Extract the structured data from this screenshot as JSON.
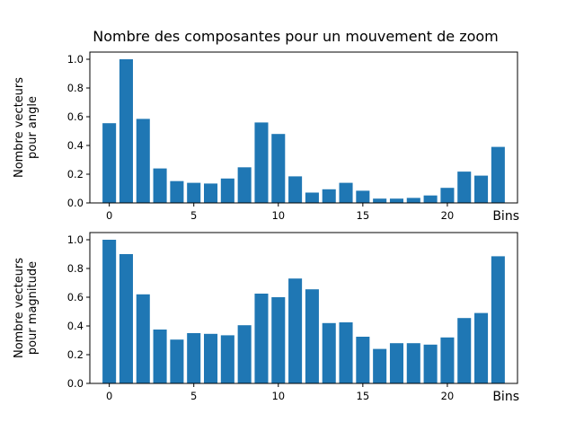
{
  "title": "Nombre des composantes pour un mouvement de zoom",
  "colors": {
    "bar": "#1f77b4"
  },
  "chart_data": [
    {
      "type": "bar",
      "ylabel": [
        "Nombre vecteurs",
        "pour angle"
      ],
      "xlabel": "Bins",
      "x": [
        0,
        1,
        2,
        3,
        4,
        5,
        6,
        7,
        8,
        9,
        10,
        11,
        12,
        13,
        14,
        15,
        16,
        17,
        18,
        19,
        20,
        21,
        22,
        23
      ],
      "values": [
        0.555,
        1.0,
        0.585,
        0.24,
        0.152,
        0.14,
        0.135,
        0.17,
        0.248,
        0.56,
        0.48,
        0.185,
        0.072,
        0.095,
        0.14,
        0.085,
        0.03,
        0.03,
        0.035,
        0.052,
        0.105,
        0.218,
        0.19,
        0.39
      ],
      "ylim": [
        0,
        1.05
      ],
      "xlim": [
        -1.15,
        24.15
      ],
      "xticks": [
        0,
        5,
        10,
        15,
        20
      ],
      "yticks": [
        0.0,
        0.2,
        0.4,
        0.6,
        0.8,
        1.0
      ],
      "xtick_labels": [
        "0",
        "5",
        "10",
        "15",
        "20"
      ],
      "ytick_labels": [
        "0.0",
        "0.2",
        "0.4",
        "0.6",
        "0.8",
        "1.0"
      ]
    },
    {
      "type": "bar",
      "ylabel": [
        "Nombre vecteurs",
        "pour magnitude"
      ],
      "xlabel": "Bins",
      "x": [
        0,
        1,
        2,
        3,
        4,
        5,
        6,
        7,
        8,
        9,
        10,
        11,
        12,
        13,
        14,
        15,
        16,
        17,
        18,
        19,
        20,
        21,
        22,
        23
      ],
      "values": [
        1.0,
        0.9,
        0.62,
        0.375,
        0.305,
        0.35,
        0.345,
        0.335,
        0.405,
        0.625,
        0.6,
        0.73,
        0.655,
        0.42,
        0.425,
        0.325,
        0.24,
        0.28,
        0.28,
        0.27,
        0.32,
        0.455,
        0.49,
        0.885
      ],
      "ylim": [
        0,
        1.05
      ],
      "xlim": [
        -1.15,
        24.15
      ],
      "xticks": [
        0,
        5,
        10,
        15,
        20
      ],
      "yticks": [
        0.0,
        0.2,
        0.4,
        0.6,
        0.8,
        1.0
      ],
      "xtick_labels": [
        "0",
        "5",
        "10",
        "15",
        "20"
      ],
      "ytick_labels": [
        "0.0",
        "0.2",
        "0.4",
        "0.6",
        "0.8",
        "1.0"
      ]
    }
  ]
}
